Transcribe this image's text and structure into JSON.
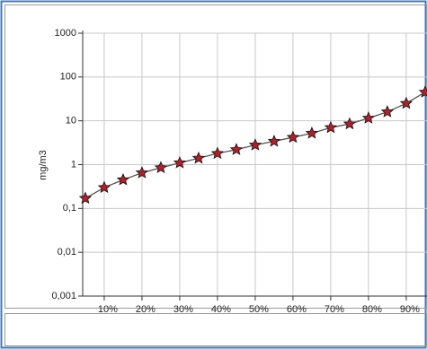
{
  "chart_data": {
    "type": "line",
    "y_label": "mg/m3",
    "x": [
      5,
      10,
      15,
      20,
      25,
      30,
      35,
      40,
      45,
      50,
      55,
      60,
      65,
      70,
      75,
      80,
      85,
      90,
      95
    ],
    "series": [
      {
        "color": "#b3202a",
        "values": [
          0.17,
          0.3,
          0.45,
          0.65,
          0.85,
          1.1,
          1.4,
          1.8,
          2.2,
          2.8,
          3.4,
          4.2,
          5.2,
          7,
          8.5,
          11.5,
          16,
          25,
          45
        ]
      }
    ],
    "xlim": [
      4.3,
      95.5
    ],
    "xticks": [
      {
        "value": 10,
        "label": "10%"
      },
      {
        "value": 20,
        "label": "20%"
      },
      {
        "value": 30,
        "label": "30%"
      },
      {
        "value": 40,
        "label": "40%"
      },
      {
        "value": 50,
        "label": "50%"
      },
      {
        "value": 60,
        "label": "60%"
      },
      {
        "value": 70,
        "label": "70%"
      },
      {
        "value": 80,
        "label": "80%"
      },
      {
        "value": 90,
        "label": "90%"
      }
    ],
    "ylim": [
      0.001,
      1000
    ],
    "yticks": [
      {
        "value": 0.001,
        "label": "0,001"
      },
      {
        "value": 0.01,
        "label": "0,01"
      },
      {
        "value": 0.1,
        "label": "0,1"
      },
      1,
      10,
      100,
      1000
    ],
    "log_y": true,
    "grid": true
  }
}
